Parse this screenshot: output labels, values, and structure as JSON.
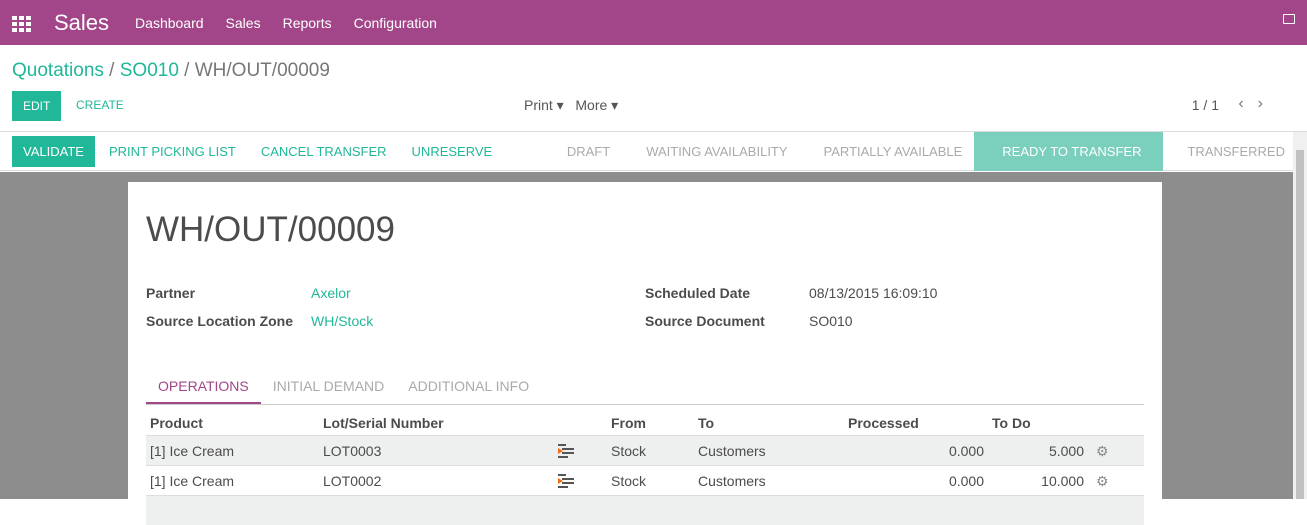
{
  "topbar": {
    "app": "Sales",
    "menu": [
      "Dashboard",
      "Sales",
      "Reports",
      "Configuration"
    ],
    "color": "#a24689"
  },
  "breadcrumb": [
    "Quotations",
    "SO010",
    "WH/OUT/00009"
  ],
  "buttons": {
    "edit": "EDIT",
    "create": "CREATE",
    "print": "Print",
    "more": "More"
  },
  "pager": "1 / 1",
  "status_buttons": [
    "VALIDATE",
    "PRINT PICKING LIST",
    "CANCEL TRANSFER",
    "UNRESERVE"
  ],
  "states": [
    {
      "label": "DRAFT"
    },
    {
      "label": "WAITING AVAILABILITY"
    },
    {
      "label": "PARTIALLY AVAILABLE"
    },
    {
      "label": "READY TO TRANSFER",
      "active": true
    },
    {
      "label": "TRANSFERRED"
    }
  ],
  "form": {
    "title": "WH/OUT/00009",
    "partner_label": "Partner",
    "partner": "Axelor",
    "source_zone_label": "Source Location Zone",
    "source_zone": "WH/Stock",
    "date_label": "Scheduled Date",
    "date": "08/13/2015 16:09:10",
    "source_doc_label": "Source Document",
    "source_doc": "SO010"
  },
  "tabs": [
    "OPERATIONS",
    "INITIAL DEMAND",
    "ADDITIONAL INFO"
  ],
  "table": {
    "headers": [
      "Product",
      "Lot/Serial Number",
      "From",
      "To",
      "Processed",
      "To Do"
    ],
    "rows": [
      [
        "[1] Ice Cream",
        "LOT0003",
        "Stock",
        "Customers",
        "0.000",
        "5.000"
      ],
      [
        "[1] Ice Cream",
        "LOT0002",
        "Stock",
        "Customers",
        "0.000",
        "10.000"
      ]
    ]
  },
  "accent": "#21b799"
}
